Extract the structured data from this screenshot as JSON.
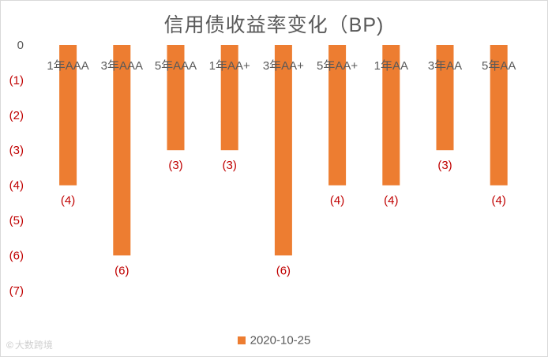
{
  "chart_data": {
    "type": "bar",
    "title": "信用债收益率变化（BP)",
    "categories": [
      "1年AAA",
      "3年AAA",
      "5年AAA",
      "1年AA+",
      "3年AA+",
      "5年AA+",
      "1年AA",
      "3年AA",
      "5年AA"
    ],
    "series": [
      {
        "name": "2020-10-25",
        "values": [
          -4,
          -6,
          -3,
          -3,
          -6,
          -4,
          -4,
          -3,
          -4
        ]
      }
    ],
    "data_labels": [
      "(4)",
      "(6)",
      "(3)",
      "(3)",
      "(6)",
      "(4)",
      "(4)",
      "(3)",
      "(4)"
    ],
    "y_tick_labels": [
      "0",
      "(1)",
      "(2)",
      "(3)",
      "(4)",
      "(5)",
      "(6)",
      "(7)"
    ],
    "ylim": [
      -7,
      0
    ],
    "grid": false,
    "legend_position": "bottom",
    "colors": {
      "bar": "#ED7D31",
      "label": "#C00000",
      "axis_text": "#595959"
    }
  },
  "watermark": {
    "icon": "©",
    "text": "大数跨境"
  }
}
